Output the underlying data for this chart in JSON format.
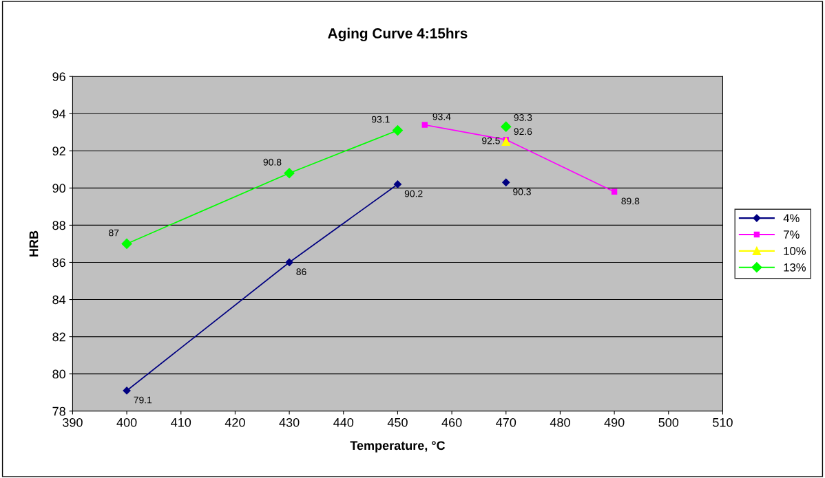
{
  "chart_data": {
    "type": "line",
    "title": "Aging Curve 4:15hrs",
    "xlabel": "Temperature, °C",
    "ylabel": "HRB",
    "xlim": [
      390,
      510
    ],
    "xticks": [
      390,
      400,
      410,
      420,
      430,
      440,
      450,
      460,
      470,
      480,
      490,
      500,
      510
    ],
    "ylim": [
      78,
      96
    ],
    "yticks": [
      78,
      80,
      82,
      84,
      86,
      88,
      90,
      92,
      94,
      96
    ],
    "grid": "y",
    "legend": "right",
    "data_labels": true,
    "line_style": "solid",
    "series": [
      {
        "name": "4%",
        "color": "#000080",
        "marker": "diamond",
        "x": [
          400,
          430,
          450,
          460,
          470
        ],
        "values": [
          79.1,
          86,
          90.2,
          null,
          90.3
        ]
      },
      {
        "name": "7%",
        "color": "#ff00ff",
        "marker": "square",
        "x": [
          455,
          470,
          490
        ],
        "values": [
          93.4,
          92.6,
          89.8
        ]
      },
      {
        "name": "10%",
        "color": "#ffff00",
        "marker": "triangle",
        "x": [
          470
        ],
        "values": [
          92.5
        ]
      },
      {
        "name": "13%",
        "color": "#00ff00",
        "marker": "diamond",
        "x": [
          400,
          430,
          450,
          460,
          470
        ],
        "values": [
          87,
          90.8,
          93.1,
          null,
          93.3
        ]
      }
    ]
  }
}
